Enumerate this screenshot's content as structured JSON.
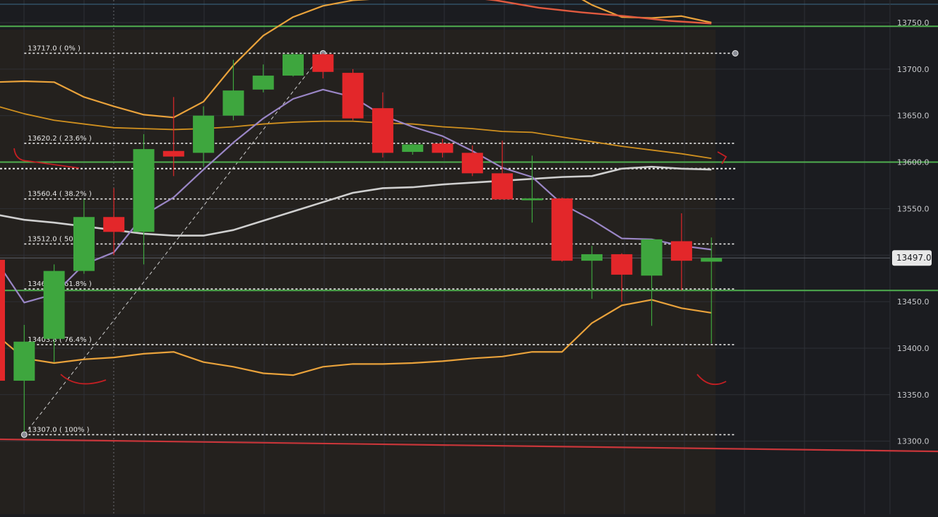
{
  "chart_data": {
    "type": "candlestick",
    "title": "",
    "x_count": 24,
    "y_axis": {
      "ticks": [
        13300,
        13350,
        13400,
        13450,
        13500,
        13550,
        13600,
        13650,
        13700,
        13750
      ],
      "tick_labels": [
        "13300.0",
        "13350.0",
        "13400.0",
        "13450.0",
        "13550.0",
        "13600.0",
        "13650.0",
        "13700.0",
        "13750.0"
      ],
      "range": [
        13285,
        13795
      ],
      "position": "right"
    },
    "last_price": 13497,
    "last_price_label": "13497.0",
    "candles": [
      {
        "o": 13495,
        "h": 13495,
        "l": 13365,
        "c": 13365
      },
      {
        "o": 13365,
        "h": 13425,
        "l": 13310,
        "c": 13407
      },
      {
        "o": 13410,
        "h": 13490,
        "l": 13385,
        "c": 13483
      },
      {
        "o": 13483,
        "h": 13560,
        "l": 13480,
        "c": 13541
      },
      {
        "o": 13541,
        "h": 13572,
        "l": 13500,
        "c": 13525
      },
      {
        "o": 13525,
        "h": 13630,
        "l": 13490,
        "c": 13614
      },
      {
        "o": 13612,
        "h": 13670,
        "l": 13585,
        "c": 13606
      },
      {
        "o": 13610,
        "h": 13660,
        "l": 13595,
        "c": 13650
      },
      {
        "o": 13650,
        "h": 13710,
        "l": 13645,
        "c": 13677
      },
      {
        "o": 13678,
        "h": 13705,
        "l": 13675,
        "c": 13693
      },
      {
        "o": 13693,
        "h": 13717,
        "l": 13692,
        "c": 13716
      },
      {
        "o": 13716,
        "h": 13717,
        "l": 13690,
        "c": 13697
      },
      {
        "o": 13696,
        "h": 13700,
        "l": 13645,
        "c": 13647
      },
      {
        "o": 13658,
        "h": 13675,
        "l": 13605,
        "c": 13610
      },
      {
        "o": 13611,
        "h": 13620,
        "l": 13608,
        "c": 13619
      },
      {
        "o": 13620,
        "h": 13625,
        "l": 13605,
        "c": 13610
      },
      {
        "o": 13610,
        "h": 13618,
        "l": 13585,
        "c": 13588
      },
      {
        "o": 13588,
        "h": 13623,
        "l": 13560,
        "c": 13560
      },
      {
        "o": 13559,
        "h": 13607,
        "l": 13535,
        "c": 13561
      },
      {
        "o": 13561,
        "h": 13562,
        "l": 13493,
        "c": 13494
      },
      {
        "o": 13494,
        "h": 13510,
        "l": 13453,
        "c": 13501
      },
      {
        "o": 13501,
        "h": 13502,
        "l": 13450,
        "c": 13479
      },
      {
        "o": 13478,
        "h": 13512,
        "l": 13424,
        "c": 13517
      },
      {
        "o": 13515,
        "h": 13545,
        "l": 13462,
        "c": 13494
      },
      {
        "o": 13493,
        "h": 13519,
        "l": 13405,
        "c": 13497
      }
    ],
    "indicators": [
      {
        "name": "",
        "color": "#e9a23b",
        "width": 2.2,
        "values": [
          13686,
          13687,
          13686,
          13670,
          13660,
          13651,
          13648,
          13665,
          13704,
          13736,
          13756,
          13768,
          13774,
          13776,
          13781,
          13785,
          13787,
          13787,
          13787,
          13787,
          13769,
          13756,
          13755,
          13757,
          13750
        ]
      },
      {
        "name": "",
        "color": "#d0901f",
        "width": 1.8,
        "values": [
          13661,
          13652,
          13645,
          13641,
          13637,
          13636,
          13635,
          13636,
          13638,
          13641,
          13643,
          13644,
          13644,
          13642,
          13641,
          13638,
          13636,
          13633,
          13632,
          13627,
          13622,
          13617,
          13613,
          13609,
          13604
        ]
      },
      {
        "name": "",
        "color": "#e9a23b",
        "width": 2.2,
        "values": [
          13416,
          13389,
          13384,
          13388,
          13390,
          13394,
          13396,
          13385,
          13380,
          13373,
          13371,
          13380,
          13383,
          13383,
          13384,
          13386,
          13389,
          13391,
          13396,
          13396,
          13427,
          13446,
          13452,
          13443,
          13438
        ]
      },
      {
        "name": "",
        "color": "#cfcfcf",
        "width": 2.6,
        "values": [
          13544,
          13538,
          13535,
          13531,
          13527,
          13523,
          13521,
          13521,
          13527,
          13537,
          13547,
          13557,
          13567,
          13572,
          13573,
          13576,
          13578,
          13580,
          13582,
          13584,
          13585,
          13593,
          13595,
          13593,
          13592
        ]
      },
      {
        "name": "",
        "color": "#9a86c6",
        "width": 2.2,
        "values": [
          13497,
          13449,
          13458,
          13490,
          13503,
          13543,
          13562,
          13592,
          13621,
          13647,
          13668,
          13678,
          13670,
          13650,
          13638,
          13628,
          13612,
          13594,
          13584,
          13555,
          13538,
          13518,
          13517,
          13510,
          13506
        ]
      },
      {
        "name": "",
        "color": "#e05a3f",
        "width": 2.4,
        "x_range": [
          11,
          24
        ],
        "values": [
          13800,
          13796,
          13786,
          13779,
          13774,
          13766,
          13761,
          13757,
          13752,
          13749
        ]
      }
    ],
    "horizontal_levels": [
      {
        "value": 13746,
        "color": "#4fae4f",
        "style": "solid"
      },
      {
        "value": 13600,
        "color": "#4fae4f",
        "style": "solid"
      },
      {
        "value": 13462,
        "color": "#4fae4f",
        "style": "solid"
      },
      {
        "value": 13593,
        "color": "#e8e8e8",
        "style": "dotted"
      }
    ],
    "fibonacci": {
      "start": {
        "x": 0,
        "y": 13307
      },
      "end": {
        "x": 10,
        "y": 13717
      },
      "x_extent": 24.8,
      "levels": [
        {
          "value": 13717,
          "label": "13717.0 ( 0% )"
        },
        {
          "value": 13620.2,
          "label": "13620.2 ( 23.6% )"
        },
        {
          "value": 13560.4,
          "label": "13560.4 ( 38.2% )"
        },
        {
          "value": 13512.0,
          "label": "13512.0 ( 50% )"
        },
        {
          "value": 13463.6,
          "label": "13463.6 ( 61.8% )"
        },
        {
          "value": 13403.8,
          "label": "13403.8 ( 76.4% )"
        },
        {
          "value": 13307.0,
          "label": "13307.0 ( 100% )"
        }
      ]
    },
    "trend_line_red_bottom": {
      "color": "#c9363a",
      "from_value": 13302,
      "to_value": 13289
    }
  }
}
